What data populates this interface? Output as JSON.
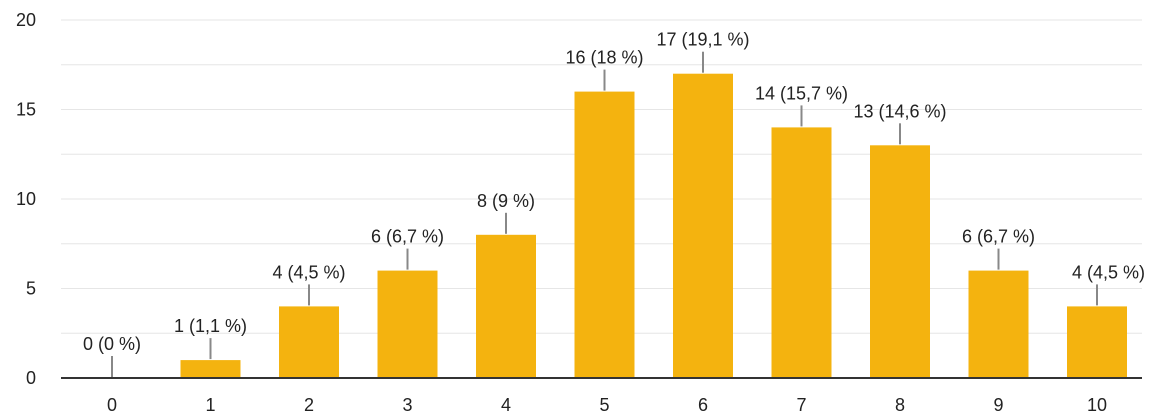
{
  "colors": {
    "bar": "#F4B30F",
    "grid": "#e6e6e6",
    "axis": "#333333",
    "leader": "#888888",
    "text": "#222222"
  },
  "chart_data": {
    "type": "bar",
    "title": "",
    "xlabel": "",
    "ylabel": "",
    "ylim": [
      0,
      20
    ],
    "yticks": [
      0,
      5,
      10,
      15,
      20
    ],
    "grid": true,
    "categories": [
      "0",
      "1",
      "2",
      "3",
      "4",
      "5",
      "6",
      "7",
      "8",
      "9",
      "10"
    ],
    "values": [
      0,
      1,
      4,
      6,
      8,
      16,
      17,
      14,
      13,
      6,
      4
    ],
    "data_labels": [
      "0 (0 %)",
      "1 (1,1 %)",
      "4 (4,5 %)",
      "6 (6,7 %)",
      "8 (9 %)",
      "16 (18 %)",
      "17 (19,1 %)",
      "14 (15,7 %)",
      "13 (14,6 %)",
      "6 (6,7 %)",
      "4 (4,5 %)"
    ]
  }
}
